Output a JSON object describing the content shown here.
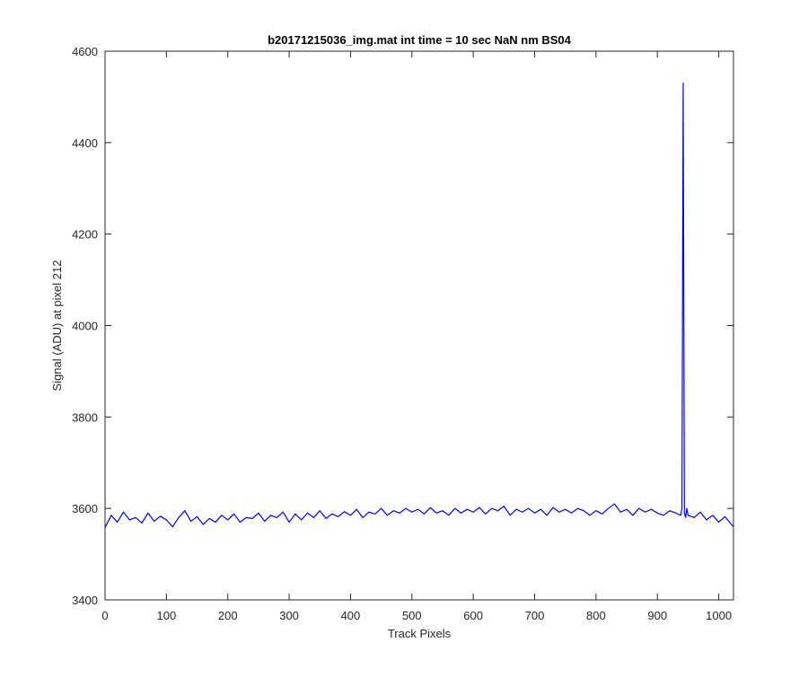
{
  "chart_data": {
    "type": "line",
    "title": "b20171215036_img.mat int time = 10 sec  NaN nm BS04",
    "xlabel": "Track Pixels",
    "ylabel": "Signal (ADU) at pixel 212",
    "xlim": [
      0,
      1024
    ],
    "ylim": [
      3400,
      4600
    ],
    "xticks": [
      0,
      100,
      200,
      300,
      400,
      500,
      600,
      700,
      800,
      900,
      1000
    ],
    "yticks": [
      3400,
      3600,
      3800,
      4000,
      4200,
      4400,
      4600
    ],
    "xtick_labels": [
      "0",
      "100",
      "200",
      "300",
      "400",
      "500",
      "600",
      "700",
      "800",
      "900",
      "1000"
    ],
    "ytick_labels": [
      "3400",
      "3600",
      "3800",
      "4000",
      "4200",
      "4400",
      "4600"
    ],
    "grid": false,
    "series": [
      {
        "color": "#0000ff",
        "x": [
          0,
          10,
          20,
          30,
          40,
          50,
          60,
          70,
          80,
          90,
          100,
          110,
          120,
          130,
          140,
          150,
          160,
          170,
          180,
          190,
          200,
          210,
          220,
          230,
          240,
          250,
          260,
          270,
          280,
          290,
          300,
          310,
          320,
          330,
          340,
          350,
          360,
          370,
          380,
          390,
          400,
          410,
          420,
          430,
          440,
          450,
          460,
          470,
          480,
          490,
          500,
          510,
          520,
          530,
          540,
          550,
          560,
          570,
          580,
          590,
          600,
          610,
          620,
          630,
          640,
          650,
          660,
          670,
          680,
          690,
          700,
          710,
          720,
          730,
          740,
          750,
          760,
          770,
          780,
          790,
          800,
          810,
          820,
          830,
          840,
          850,
          860,
          870,
          880,
          890,
          900,
          910,
          920,
          930,
          938,
          940,
          942,
          944,
          946,
          948,
          950,
          960,
          970,
          980,
          990,
          1000,
          1010,
          1024
        ],
        "y": [
          3558,
          3585,
          3570,
          3592,
          3575,
          3580,
          3568,
          3590,
          3572,
          3583,
          3575,
          3560,
          3580,
          3595,
          3572,
          3582,
          3565,
          3578,
          3570,
          3585,
          3575,
          3588,
          3570,
          3580,
          3578,
          3590,
          3572,
          3585,
          3580,
          3592,
          3570,
          3588,
          3575,
          3590,
          3580,
          3595,
          3578,
          3588,
          3582,
          3593,
          3585,
          3598,
          3580,
          3592,
          3588,
          3600,
          3585,
          3595,
          3590,
          3600,
          3592,
          3598,
          3588,
          3602,
          3590,
          3595,
          3585,
          3600,
          3590,
          3598,
          3592,
          3602,
          3588,
          3600,
          3595,
          3605,
          3585,
          3598,
          3592,
          3600,
          3590,
          3598,
          3585,
          3602,
          3592,
          3598,
          3590,
          3600,
          3595,
          3585,
          3595,
          3588,
          3600,
          3610,
          3592,
          3598,
          3585,
          3600,
          3592,
          3598,
          3590,
          3585,
          3595,
          3590,
          3585,
          3600,
          4530,
          3590,
          3580,
          3600,
          3585,
          3580,
          3592,
          3575,
          3585,
          3570,
          3582,
          3560
        ]
      }
    ]
  }
}
